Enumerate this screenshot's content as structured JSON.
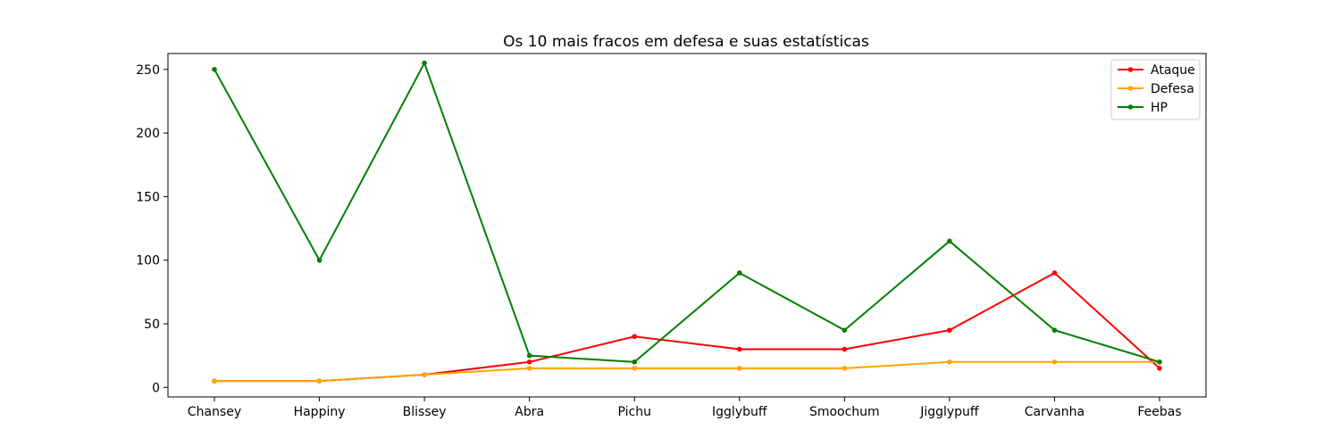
{
  "chart_data": {
    "type": "line",
    "title": "Os 10 mais fracos em defesa e suas estatísticas",
    "xlabel": "",
    "ylabel": "",
    "categories": [
      "Chansey",
      "Happiny",
      "Blissey",
      "Abra",
      "Pichu",
      "Igglybuff",
      "Smoochum",
      "Jigglypuff",
      "Carvanha",
      "Feebas"
    ],
    "series": [
      {
        "name": "Ataque",
        "color": "#ff0000",
        "values": [
          5,
          5,
          10,
          20,
          40,
          30,
          30,
          45,
          90,
          15
        ]
      },
      {
        "name": "Defesa",
        "color": "#ffa500",
        "values": [
          5,
          5,
          10,
          15,
          15,
          15,
          15,
          20,
          20,
          20
        ]
      },
      {
        "name": "HP",
        "color": "#008000",
        "values": [
          250,
          100,
          255,
          25,
          20,
          90,
          45,
          115,
          45,
          20
        ]
      }
    ],
    "ylim": [
      -7.5,
      262.5
    ],
    "yticks": [
      0,
      50,
      100,
      150,
      200,
      250
    ],
    "grid": false,
    "legend": "top-right",
    "markers": true
  }
}
